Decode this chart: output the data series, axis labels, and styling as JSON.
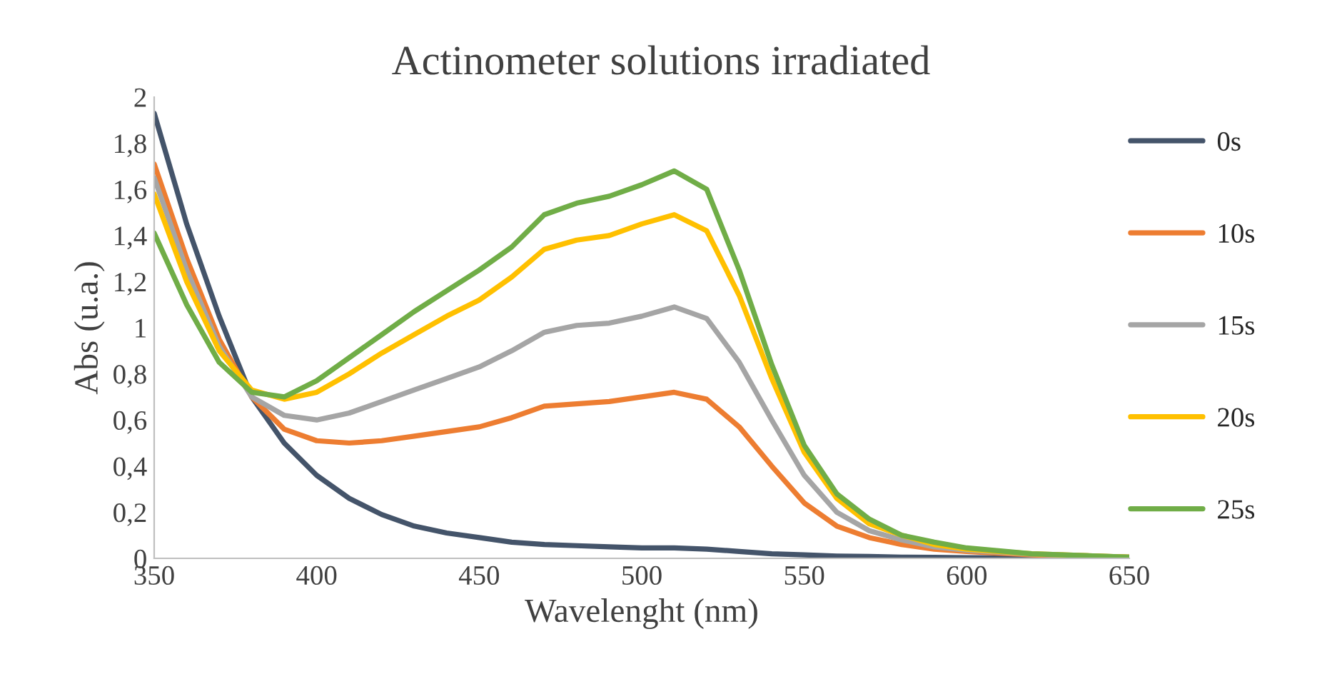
{
  "chart_data": {
    "type": "line",
    "title": "Actinometer solutions irradiated",
    "xlabel": "Wavelenght (nm)",
    "ylabel": "Abs (u.a.)",
    "x": [
      350,
      360,
      370,
      380,
      390,
      400,
      410,
      420,
      430,
      440,
      450,
      460,
      470,
      480,
      490,
      500,
      510,
      520,
      530,
      540,
      550,
      560,
      570,
      580,
      590,
      600,
      620,
      650
    ],
    "series": [
      {
        "name": "0s",
        "color": "#44546a",
        "values": [
          1.93,
          1.45,
          1.05,
          0.7,
          0.5,
          0.36,
          0.26,
          0.19,
          0.14,
          0.11,
          0.09,
          0.07,
          0.06,
          0.055,
          0.05,
          0.045,
          0.045,
          0.04,
          0.03,
          0.02,
          0.015,
          0.01,
          0.008,
          0.005,
          0.004,
          0.003,
          0.002,
          0
        ]
      },
      {
        "name": "10s",
        "color": "#ed7d31",
        "values": [
          1.71,
          1.3,
          0.95,
          0.7,
          0.56,
          0.51,
          0.5,
          0.51,
          0.53,
          0.55,
          0.57,
          0.61,
          0.66,
          0.67,
          0.68,
          0.7,
          0.72,
          0.69,
          0.57,
          0.4,
          0.24,
          0.14,
          0.09,
          0.06,
          0.04,
          0.03,
          0.015,
          0.005
        ]
      },
      {
        "name": "15s",
        "color": "#a5a5a5",
        "values": [
          1.65,
          1.25,
          0.92,
          0.7,
          0.62,
          0.6,
          0.63,
          0.68,
          0.73,
          0.78,
          0.83,
          0.9,
          0.98,
          1.01,
          1.02,
          1.05,
          1.09,
          1.04,
          0.85,
          0.6,
          0.36,
          0.2,
          0.12,
          0.08,
          0.05,
          0.035,
          0.018,
          0.005
        ]
      },
      {
        "name": "20s",
        "color": "#ffc000",
        "values": [
          1.58,
          1.2,
          0.9,
          0.73,
          0.69,
          0.72,
          0.8,
          0.89,
          0.97,
          1.05,
          1.12,
          1.22,
          1.34,
          1.38,
          1.4,
          1.45,
          1.49,
          1.42,
          1.14,
          0.78,
          0.46,
          0.26,
          0.15,
          0.1,
          0.06,
          0.04,
          0.02,
          0.005
        ]
      },
      {
        "name": "25s",
        "color": "#70ad47",
        "values": [
          1.41,
          1.1,
          0.85,
          0.72,
          0.7,
          0.77,
          0.87,
          0.97,
          1.07,
          1.16,
          1.25,
          1.35,
          1.49,
          1.54,
          1.57,
          1.62,
          1.68,
          1.6,
          1.25,
          0.84,
          0.49,
          0.28,
          0.17,
          0.1,
          0.07,
          0.045,
          0.02,
          0.005
        ]
      }
    ],
    "xlim": [
      350,
      650
    ],
    "xticks": [
      350,
      400,
      450,
      500,
      550,
      600,
      650
    ],
    "ylim": [
      0,
      2
    ],
    "yticks": [
      0,
      {
        "value": 0.2,
        "label": "0,2"
      },
      {
        "value": 0.4,
        "label": "0,4"
      },
      {
        "value": 0.6,
        "label": "0,6"
      },
      {
        "value": 0.8,
        "label": "0,8"
      },
      1,
      {
        "value": 1.2,
        "label": "1,2"
      },
      {
        "value": 1.4,
        "label": "1,4"
      },
      {
        "value": 1.6,
        "label": "1,6"
      },
      {
        "value": 1.8,
        "label": "1,8"
      },
      2
    ],
    "grid": false,
    "legend": "right",
    "marker": "none",
    "line_style": "solid"
  }
}
